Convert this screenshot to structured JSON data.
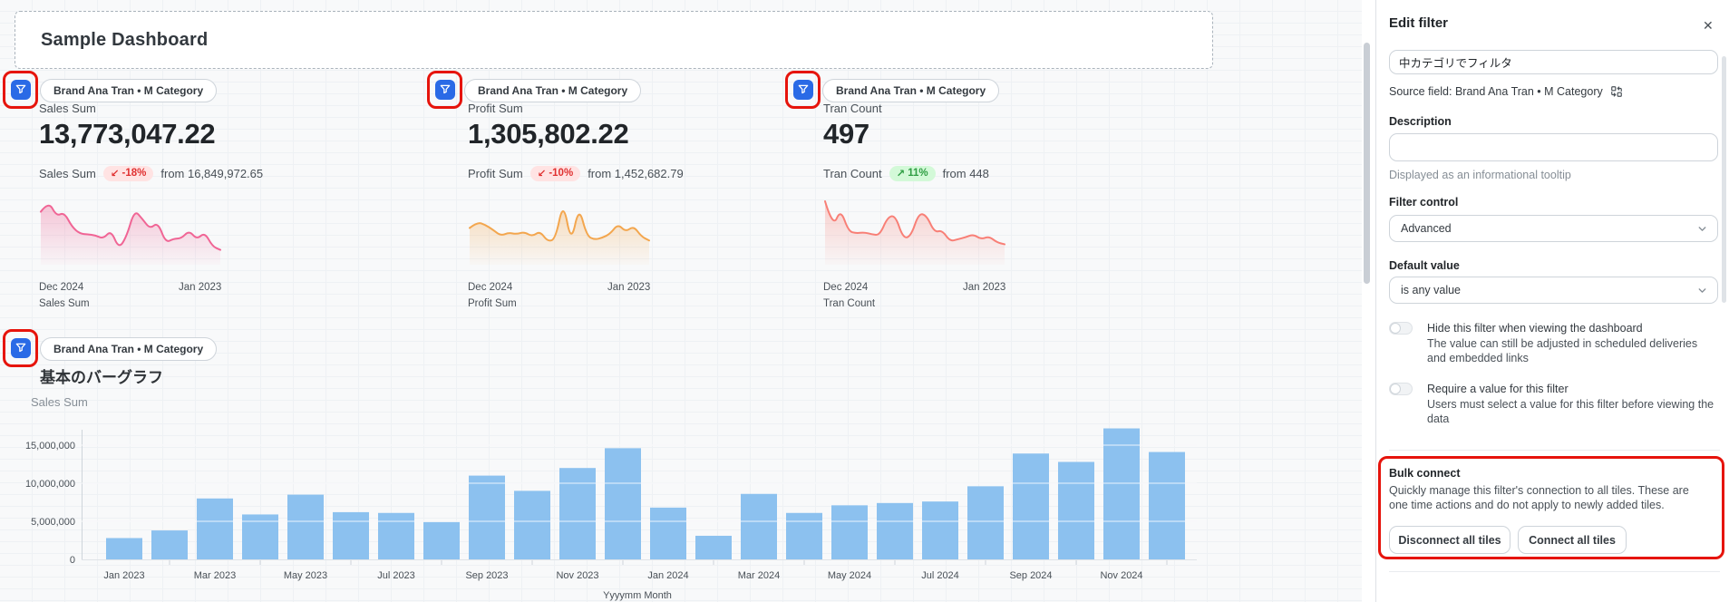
{
  "dashboard": {
    "title": "Sample Dashboard",
    "filter_chip_label": "Brand Ana Tran • M Category",
    "kpis": [
      {
        "label": "Sales Sum",
        "value": "13,773,047.22",
        "comparison_label": "Sales Sum",
        "change_glyph": "↙",
        "change_text": "-18%",
        "trend": "down",
        "from_text": "from 16,849,972.65",
        "date_left": "Dec 2024",
        "date_right": "Jan 2023",
        "footer_label": "Sales Sum",
        "line_color": "#f06595"
      },
      {
        "label": "Profit Sum",
        "value": "1,305,802.22",
        "comparison_label": "Profit Sum",
        "change_glyph": "↙",
        "change_text": "-10%",
        "trend": "down",
        "from_text": "from 1,452,682.79",
        "date_left": "Dec 2024",
        "date_right": "Jan 2023",
        "footer_label": "Profit Sum",
        "line_color": "#f3a64e"
      },
      {
        "label": "Tran Count",
        "value": "497",
        "comparison_label": "Tran Count",
        "change_glyph": "↗",
        "change_text": "11%",
        "trend": "up",
        "from_text": "from 448",
        "date_left": "Dec 2024",
        "date_right": "Jan 2023",
        "footer_label": "Tran Count",
        "line_color": "#f87f76"
      }
    ],
    "bar_tile": {
      "title": "基本のバーグラフ",
      "y_axis_label": "Sales Sum"
    }
  },
  "panel": {
    "title": "Edit filter",
    "close_glyph": "✕",
    "name_input": {
      "value": "中カテゴリでフィルタ"
    },
    "source_field": "Source field: Brand Ana Tran • M Category",
    "description": {
      "label": "Description",
      "value": "",
      "helper": "Displayed as an informational tooltip"
    },
    "filter_control": {
      "label": "Filter control",
      "value": "Advanced"
    },
    "default_value": {
      "label": "Default value",
      "value": "is any value"
    },
    "toggles": [
      {
        "label": "Hide this filter when viewing the dashboard",
        "description": "The value can still be adjusted in scheduled deliveries and embedded links",
        "state": "off"
      },
      {
        "label": "Require a value for this filter",
        "description": "Users must select a value for this filter before viewing the data",
        "state": "off"
      }
    ],
    "bulk_connect": {
      "title": "Bulk connect",
      "description": "Quickly manage this filter's connection to all tiles. These are one time actions and do not apply to newly added tiles.",
      "disconnect_label": "Disconnect all tiles",
      "connect_label": "Connect all tiles"
    }
  },
  "colors": {
    "accent_blue": "#2a6ae6",
    "annotation_red": "#e6140c",
    "bar_blue": "#8cc1ef",
    "badge_down_bg": "#ffe3e3",
    "badge_down_text": "#e03131",
    "badge_up_bg": "#d3f9d8",
    "badge_up_text": "#2f9e44"
  },
  "chart_data": [
    {
      "type": "bar",
      "title": "基本のバーグラフ",
      "xlabel": "Yyyymm Month",
      "ylabel": "Sales Sum",
      "categories": [
        "Jan 2023",
        "Feb 2023",
        "Mar 2023",
        "Apr 2023",
        "May 2023",
        "Jun 2023",
        "Jul 2023",
        "Aug 2023",
        "Sep 2023",
        "Oct 2023",
        "Nov 2023",
        "Dec 2023",
        "Jan 2024",
        "Feb 2024",
        "Mar 2024",
        "Apr 2024",
        "May 2024",
        "Jun 2024",
        "Jul 2024",
        "Aug 2024",
        "Sep 2024",
        "Oct 2024",
        "Nov 2024",
        "Dec 2024"
      ],
      "values": [
        2800000,
        3800000,
        8000000,
        5900000,
        8500000,
        6200000,
        6100000,
        4900000,
        11000000,
        9000000,
        12000000,
        14600000,
        6800000,
        3100000,
        8600000,
        6100000,
        7100000,
        7400000,
        7600000,
        9600000,
        13900000,
        12800000,
        17200000,
        14100000
      ],
      "ylim": [
        0,
        17500000
      ],
      "yticks": [
        0,
        5000000,
        10000000,
        15000000
      ],
      "xtick_labels": [
        "Jan 2023",
        "Mar 2023",
        "May 2023",
        "Jul 2023",
        "Sep 2023",
        "Nov 2023",
        "Jan 2024",
        "Mar 2024",
        "May 2024",
        "Jul 2024",
        "Sep 2024",
        "Nov 2024"
      ],
      "bar_color": "#8cc1ef",
      "grid": true,
      "legend": false
    },
    {
      "type": "line",
      "name": "sales-sparkline",
      "title": "Sales Sum",
      "x_start": "Dec 2024",
      "x_end": "Jan 2023",
      "values": [
        14100000,
        17200000,
        12800000,
        13900000,
        9600000,
        7600000,
        7400000,
        7100000,
        6100000,
        8600000,
        3100000,
        6800000,
        14600000,
        12000000,
        9000000,
        11000000,
        4900000,
        6100000,
        6200000,
        8500000,
        5900000,
        8000000,
        3800000,
        2800000
      ]
    },
    {
      "type": "line",
      "name": "profit-sparkline",
      "title": "Profit Sum",
      "x_start": "Dec 2024",
      "x_end": "Jan 2023",
      "values": [
        80000,
        95000,
        88000,
        75000,
        60000,
        68000,
        64000,
        70000,
        58000,
        72000,
        45000,
        52000,
        148000,
        40000,
        135000,
        60000,
        50000,
        55000,
        65000,
        90000,
        70000,
        85000,
        58000,
        48000
      ]
    },
    {
      "type": "line",
      "name": "tran-count-sparkline",
      "title": "Tran Count",
      "x_start": "Dec 2024",
      "x_end": "Jan 2023",
      "values": [
        58,
        32,
        50,
        28,
        26,
        27,
        25,
        24,
        42,
        44,
        21,
        23,
        46,
        44,
        27,
        29,
        18,
        20,
        22,
        25,
        20,
        23,
        17,
        15
      ]
    }
  ]
}
